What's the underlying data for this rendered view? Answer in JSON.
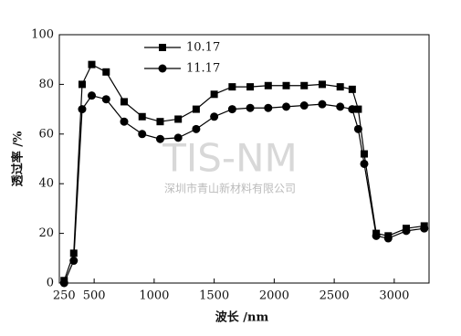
{
  "chart_data": {
    "type": "line",
    "x_label": "波长 /nm",
    "y_label": "透过率 /%",
    "watermark": "TIS-NM",
    "watermark_sub": "深圳市青山新材料有限公司",
    "x": [
      250,
      330,
      400,
      480,
      600,
      750,
      900,
      1050,
      1200,
      1350,
      1500,
      1650,
      1800,
      1950,
      2100,
      2250,
      2400,
      2550,
      2650,
      2700,
      2750,
      2850,
      2950,
      3100,
      3250
    ],
    "series": [
      {
        "name": "10.17",
        "color": "#000000",
        "marker": "square",
        "values": [
          1,
          12,
          80,
          88,
          85,
          73,
          67,
          65,
          66,
          70,
          76,
          79,
          79,
          79.5,
          79.5,
          79.5,
          80,
          79,
          78,
          70,
          52,
          20,
          19,
          22,
          23
        ]
      },
      {
        "name": "11.17",
        "color": "#000000",
        "marker": "circle",
        "values": [
          0,
          9,
          70,
          75.5,
          74,
          65,
          60,
          58,
          58.5,
          62,
          67,
          70,
          70.5,
          70.5,
          71,
          71.5,
          72,
          71,
          70,
          62,
          48,
          19,
          18,
          21,
          22
        ]
      }
    ],
    "xlim": [
      210,
      3290
    ],
    "ylim": [
      0,
      100
    ],
    "xticks": [
      250,
      500,
      1000,
      1500,
      2000,
      2500,
      3000
    ],
    "yticks": [
      0,
      20,
      40,
      60,
      80,
      100
    ],
    "legend": "upper-left"
  }
}
